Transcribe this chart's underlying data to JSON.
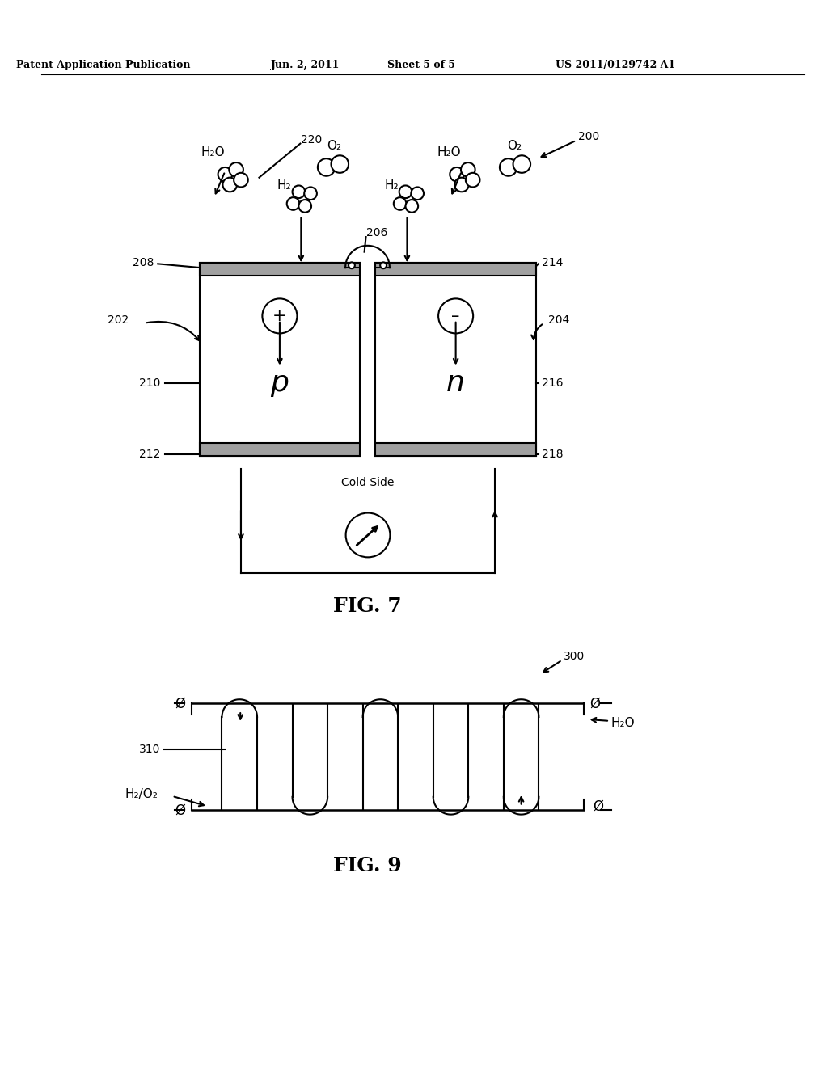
{
  "bg_color": "#ffffff",
  "lc": "#000000",
  "header_left": "Patent Application Publication",
  "header_date": "Jun. 2, 2011",
  "header_sheet": "Sheet 5 of 5",
  "header_patent": "US 2011/0129742 A1",
  "fig7_label": "FIG. 7",
  "fig9_label": "FIG. 9"
}
